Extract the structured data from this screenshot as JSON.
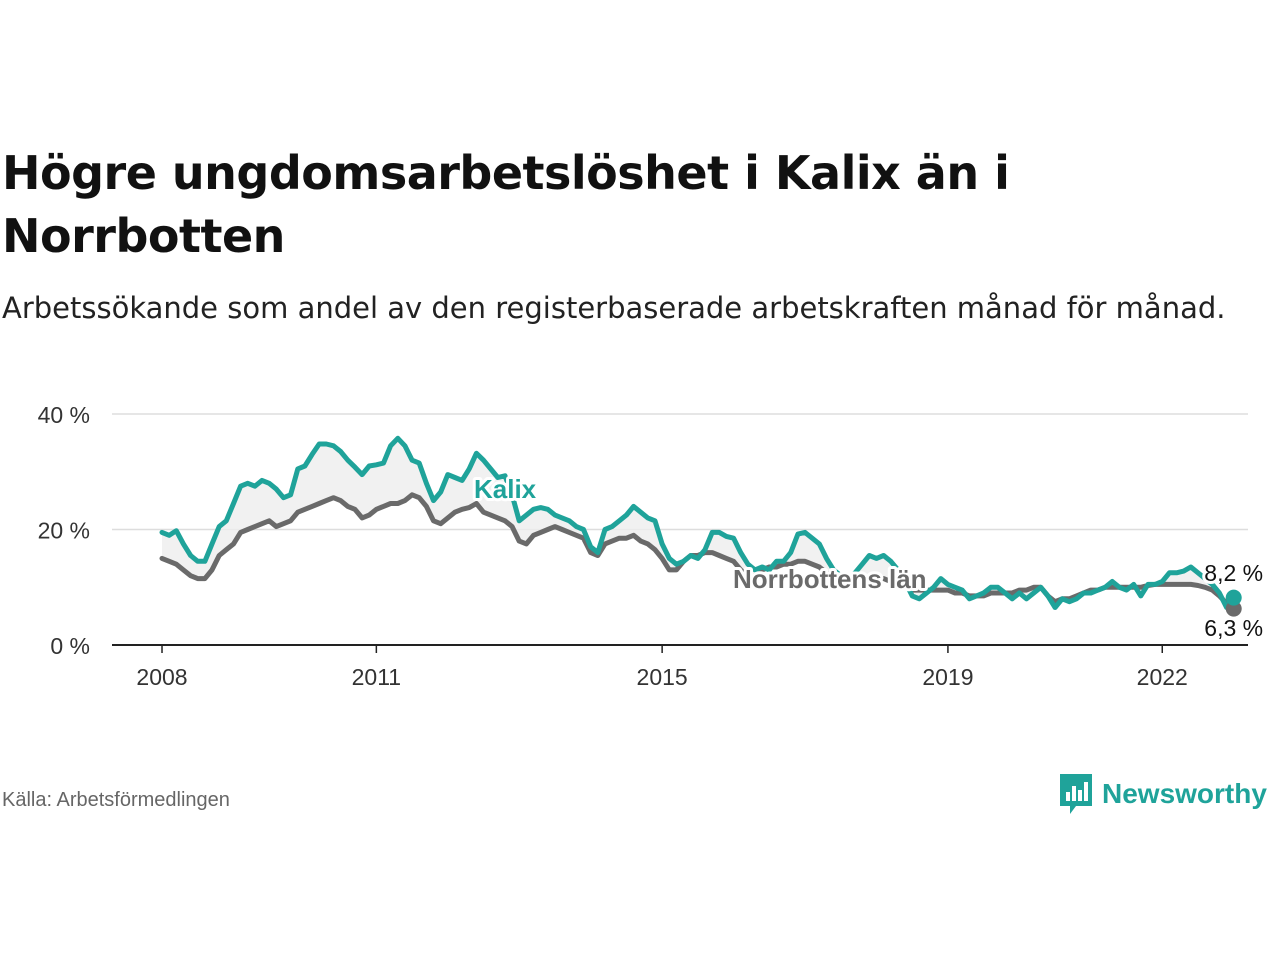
{
  "title": "Högre ungdomsarbetslöshet i Kalix än i Norrbotten",
  "subtitle": "Arbetssökande som andel av den registerbaserade arbetskraften månad för månad.",
  "source": "Källa: Arbetsförmedlingen",
  "brand": "Newsworthy",
  "colors": {
    "kalix": "#1fa39a",
    "norrbotten": "#6a6a6a",
    "band": "#eeeeee",
    "grid": "#dddddd"
  },
  "chart_data": {
    "type": "line",
    "title": "Högre ungdomsarbetslöshet i Kalix än i Norrbotten",
    "ylabel": "",
    "xlabel": "",
    "ylim": [
      0,
      40
    ],
    "y_ticks": [
      {
        "value": 0,
        "label": "0 %"
      },
      {
        "value": 20,
        "label": "20 %"
      },
      {
        "value": 40,
        "label": "40 %"
      }
    ],
    "x_ticks": [
      {
        "value": 2008,
        "label": "2008"
      },
      {
        "value": 2011,
        "label": "2011"
      },
      {
        "value": 2015,
        "label": "2015"
      },
      {
        "value": 2019,
        "label": "2019"
      },
      {
        "value": 2022,
        "label": "2022"
      }
    ],
    "xlim": [
      2007.3,
      2023.2
    ],
    "series": [
      {
        "name": "Kalix",
        "label": "Kalix",
        "end_label": "8,2 %",
        "points": [
          [
            2008.0,
            19.5
          ],
          [
            2008.1,
            19
          ],
          [
            2008.2,
            19.8
          ],
          [
            2008.3,
            17.5
          ],
          [
            2008.4,
            15.5
          ],
          [
            2008.5,
            14.5
          ],
          [
            2008.6,
            14.5
          ],
          [
            2008.7,
            17.5
          ],
          [
            2008.8,
            20.5
          ],
          [
            2008.9,
            21.5
          ],
          [
            2009.0,
            24.5
          ],
          [
            2009.1,
            27.5
          ],
          [
            2009.2,
            28
          ],
          [
            2009.3,
            27.5
          ],
          [
            2009.4,
            28.5
          ],
          [
            2009.5,
            28
          ],
          [
            2009.6,
            27
          ],
          [
            2009.7,
            25.5
          ],
          [
            2009.8,
            26
          ],
          [
            2009.9,
            30.5
          ],
          [
            2010.0,
            31
          ],
          [
            2010.1,
            33
          ],
          [
            2010.2,
            34.8
          ],
          [
            2010.3,
            34.8
          ],
          [
            2010.4,
            34.5
          ],
          [
            2010.5,
            33.5
          ],
          [
            2010.6,
            32
          ],
          [
            2010.7,
            30.8
          ],
          [
            2010.8,
            29.5
          ],
          [
            2010.9,
            31
          ],
          [
            2011.0,
            31.2
          ],
          [
            2011.1,
            31.5
          ],
          [
            2011.2,
            34.5
          ],
          [
            2011.3,
            35.8
          ],
          [
            2011.4,
            34.5
          ],
          [
            2011.5,
            32
          ],
          [
            2011.6,
            31.5
          ],
          [
            2011.7,
            28
          ],
          [
            2011.8,
            25
          ],
          [
            2011.9,
            26.5
          ],
          [
            2012.0,
            29.5
          ],
          [
            2012.1,
            29
          ],
          [
            2012.2,
            28.5
          ],
          [
            2012.3,
            30.5
          ],
          [
            2012.4,
            33.2
          ],
          [
            2012.5,
            32
          ],
          [
            2012.6,
            30.5
          ],
          [
            2012.7,
            29
          ],
          [
            2012.8,
            29.3
          ],
          [
            2012.9,
            26
          ],
          [
            2013.0,
            21.5
          ],
          [
            2013.1,
            22.5
          ],
          [
            2013.2,
            23.5
          ],
          [
            2013.3,
            23.8
          ],
          [
            2013.4,
            23.5
          ],
          [
            2013.5,
            22.5
          ],
          [
            2013.6,
            22
          ],
          [
            2013.7,
            21.5
          ],
          [
            2013.8,
            20.5
          ],
          [
            2013.9,
            20
          ],
          [
            2014.0,
            17
          ],
          [
            2014.1,
            16
          ],
          [
            2014.2,
            20
          ],
          [
            2014.3,
            20.5
          ],
          [
            2014.4,
            21.5
          ],
          [
            2014.5,
            22.5
          ],
          [
            2014.6,
            24
          ],
          [
            2014.7,
            23
          ],
          [
            2014.8,
            22
          ],
          [
            2014.9,
            21.5
          ],
          [
            2015.0,
            17.5
          ],
          [
            2015.1,
            15
          ],
          [
            2015.2,
            14
          ],
          [
            2015.3,
            14.5
          ],
          [
            2015.4,
            15.5
          ],
          [
            2015.5,
            15
          ],
          [
            2015.6,
            16.5
          ],
          [
            2015.7,
            19.5
          ],
          [
            2015.8,
            19.5
          ],
          [
            2015.9,
            18.8
          ],
          [
            2016.0,
            18.5
          ],
          [
            2016.1,
            16
          ],
          [
            2016.2,
            14
          ],
          [
            2016.3,
            13
          ],
          [
            2016.4,
            13.5
          ],
          [
            2016.5,
            13
          ],
          [
            2016.6,
            14.5
          ],
          [
            2016.7,
            14.5
          ],
          [
            2016.8,
            16
          ],
          [
            2016.9,
            19.2
          ],
          [
            2017.0,
            19.5
          ],
          [
            2017.1,
            18.5
          ],
          [
            2017.2,
            17.5
          ],
          [
            2017.3,
            15
          ],
          [
            2017.4,
            13
          ],
          [
            2017.5,
            12
          ],
          [
            2017.6,
            11.5
          ],
          [
            2017.7,
            12.5
          ],
          [
            2017.8,
            14
          ],
          [
            2017.9,
            15.5
          ],
          [
            2018.0,
            15
          ],
          [
            2018.1,
            15.5
          ],
          [
            2018.2,
            14.5
          ],
          [
            2018.3,
            13
          ],
          [
            2018.4,
            11
          ],
          [
            2018.5,
            8.5
          ],
          [
            2018.6,
            8
          ],
          [
            2018.7,
            9
          ],
          [
            2018.8,
            10
          ],
          [
            2018.9,
            11.5
          ],
          [
            2019.0,
            10.5
          ],
          [
            2019.1,
            10
          ],
          [
            2019.2,
            9.5
          ],
          [
            2019.3,
            8
          ],
          [
            2019.4,
            8.5
          ],
          [
            2019.5,
            9
          ],
          [
            2019.6,
            10
          ],
          [
            2019.7,
            10
          ],
          [
            2019.8,
            9
          ],
          [
            2019.9,
            8
          ],
          [
            2020.0,
            9
          ],
          [
            2020.1,
            8
          ],
          [
            2020.2,
            9
          ],
          [
            2020.3,
            10
          ],
          [
            2020.4,
            8.5
          ],
          [
            2020.5,
            6.5
          ],
          [
            2020.6,
            8
          ],
          [
            2020.7,
            7.5
          ],
          [
            2020.8,
            8
          ],
          [
            2020.9,
            9
          ],
          [
            2021.0,
            9
          ],
          [
            2021.1,
            9.5
          ],
          [
            2021.2,
            10
          ],
          [
            2021.3,
            11
          ],
          [
            2021.4,
            10
          ],
          [
            2021.5,
            9.5
          ],
          [
            2021.6,
            10.5
          ],
          [
            2021.7,
            8.5
          ],
          [
            2021.8,
            10.5
          ],
          [
            2021.9,
            10.5
          ],
          [
            2022.0,
            11
          ],
          [
            2022.1,
            12.5
          ],
          [
            2022.2,
            12.5
          ],
          [
            2022.3,
            12.8
          ],
          [
            2022.4,
            13.5
          ],
          [
            2022.5,
            12.5
          ],
          [
            2022.6,
            11.5
          ],
          [
            2022.7,
            10.5
          ],
          [
            2022.8,
            9
          ],
          [
            2022.9,
            6.5
          ],
          [
            2023.0,
            8.2
          ]
        ]
      },
      {
        "name": "Norrbottens län",
        "label": "Norrbottens län",
        "end_label": "6,3 %",
        "points": [
          [
            2008.0,
            15
          ],
          [
            2008.1,
            14.5
          ],
          [
            2008.2,
            14
          ],
          [
            2008.3,
            13
          ],
          [
            2008.4,
            12
          ],
          [
            2008.5,
            11.5
          ],
          [
            2008.6,
            11.5
          ],
          [
            2008.7,
            13
          ],
          [
            2008.8,
            15.5
          ],
          [
            2008.9,
            16.5
          ],
          [
            2009.0,
            17.5
          ],
          [
            2009.1,
            19.5
          ],
          [
            2009.2,
            20
          ],
          [
            2009.3,
            20.5
          ],
          [
            2009.4,
            21
          ],
          [
            2009.5,
            21.5
          ],
          [
            2009.6,
            20.5
          ],
          [
            2009.7,
            21
          ],
          [
            2009.8,
            21.5
          ],
          [
            2009.9,
            23
          ],
          [
            2010.0,
            23.5
          ],
          [
            2010.1,
            24
          ],
          [
            2010.2,
            24.5
          ],
          [
            2010.3,
            25
          ],
          [
            2010.4,
            25.5
          ],
          [
            2010.5,
            25
          ],
          [
            2010.6,
            24
          ],
          [
            2010.7,
            23.5
          ],
          [
            2010.8,
            22
          ],
          [
            2010.9,
            22.5
          ],
          [
            2011.0,
            23.5
          ],
          [
            2011.1,
            24
          ],
          [
            2011.2,
            24.5
          ],
          [
            2011.3,
            24.5
          ],
          [
            2011.4,
            25
          ],
          [
            2011.5,
            26
          ],
          [
            2011.6,
            25.5
          ],
          [
            2011.7,
            24
          ],
          [
            2011.8,
            21.5
          ],
          [
            2011.9,
            21
          ],
          [
            2012.0,
            22
          ],
          [
            2012.1,
            23
          ],
          [
            2012.2,
            23.5
          ],
          [
            2012.3,
            23.8
          ],
          [
            2012.4,
            24.5
          ],
          [
            2012.5,
            23
          ],
          [
            2012.6,
            22.5
          ],
          [
            2012.7,
            22
          ],
          [
            2012.8,
            21.5
          ],
          [
            2012.9,
            20.5
          ],
          [
            2013.0,
            18
          ],
          [
            2013.1,
            17.5
          ],
          [
            2013.2,
            19
          ],
          [
            2013.3,
            19.5
          ],
          [
            2013.4,
            20
          ],
          [
            2013.5,
            20.5
          ],
          [
            2013.6,
            20
          ],
          [
            2013.7,
            19.5
          ],
          [
            2013.8,
            19
          ],
          [
            2013.9,
            18.5
          ],
          [
            2014.0,
            16
          ],
          [
            2014.1,
            15.5
          ],
          [
            2014.2,
            17.5
          ],
          [
            2014.3,
            18
          ],
          [
            2014.4,
            18.5
          ],
          [
            2014.5,
            18.5
          ],
          [
            2014.6,
            19
          ],
          [
            2014.7,
            18
          ],
          [
            2014.8,
            17.5
          ],
          [
            2014.9,
            16.5
          ],
          [
            2015.0,
            15
          ],
          [
            2015.1,
            13
          ],
          [
            2015.2,
            13
          ],
          [
            2015.3,
            14.5
          ],
          [
            2015.4,
            15.5
          ],
          [
            2015.5,
            15.5
          ],
          [
            2015.6,
            16
          ],
          [
            2015.7,
            16
          ],
          [
            2015.8,
            15.5
          ],
          [
            2015.9,
            15
          ],
          [
            2016.0,
            14.5
          ],
          [
            2016.1,
            13
          ],
          [
            2016.2,
            12
          ],
          [
            2016.3,
            12
          ],
          [
            2016.4,
            13
          ],
          [
            2016.5,
            13.5
          ],
          [
            2016.6,
            13.5
          ],
          [
            2016.7,
            14
          ],
          [
            2016.8,
            14
          ],
          [
            2016.9,
            14.5
          ],
          [
            2017.0,
            14.5
          ],
          [
            2017.1,
            14
          ],
          [
            2017.2,
            13.5
          ],
          [
            2017.3,
            12.5
          ],
          [
            2017.4,
            12
          ],
          [
            2017.5,
            11.5
          ],
          [
            2017.6,
            11
          ],
          [
            2017.7,
            11
          ],
          [
            2017.8,
            11.5
          ],
          [
            2017.9,
            11.5
          ],
          [
            2018.0,
            11.5
          ],
          [
            2018.1,
            11.5
          ],
          [
            2018.2,
            11
          ],
          [
            2018.3,
            10.5
          ],
          [
            2018.4,
            10
          ],
          [
            2018.5,
            9.5
          ],
          [
            2018.6,
            9.5
          ],
          [
            2018.7,
            9.5
          ],
          [
            2018.8,
            9.5
          ],
          [
            2018.9,
            9.5
          ],
          [
            2019.0,
            9.5
          ],
          [
            2019.1,
            9
          ],
          [
            2019.2,
            9
          ],
          [
            2019.3,
            8.5
          ],
          [
            2019.4,
            8.5
          ],
          [
            2019.5,
            8.5
          ],
          [
            2019.6,
            9
          ],
          [
            2019.7,
            9
          ],
          [
            2019.8,
            9
          ],
          [
            2019.9,
            9
          ],
          [
            2020.0,
            9.5
          ],
          [
            2020.1,
            9.5
          ],
          [
            2020.2,
            10
          ],
          [
            2020.3,
            10
          ],
          [
            2020.4,
            8.5
          ],
          [
            2020.5,
            7.5
          ],
          [
            2020.6,
            8
          ],
          [
            2020.7,
            8
          ],
          [
            2020.8,
            8.5
          ],
          [
            2020.9,
            9
          ],
          [
            2021.0,
            9.5
          ],
          [
            2021.1,
            9.5
          ],
          [
            2021.2,
            10
          ],
          [
            2021.3,
            10
          ],
          [
            2021.4,
            10
          ],
          [
            2021.5,
            10
          ],
          [
            2021.6,
            10
          ],
          [
            2021.7,
            10
          ],
          [
            2021.8,
            10.3
          ],
          [
            2021.9,
            10.5
          ],
          [
            2022.0,
            10.5
          ],
          [
            2022.1,
            10.5
          ],
          [
            2022.2,
            10.5
          ],
          [
            2022.3,
            10.5
          ],
          [
            2022.4,
            10.5
          ],
          [
            2022.5,
            10.3
          ],
          [
            2022.6,
            10
          ],
          [
            2022.7,
            9.5
          ],
          [
            2022.8,
            8.5
          ],
          [
            2022.9,
            7.2
          ],
          [
            2023.0,
            6.3
          ]
        ]
      }
    ]
  }
}
